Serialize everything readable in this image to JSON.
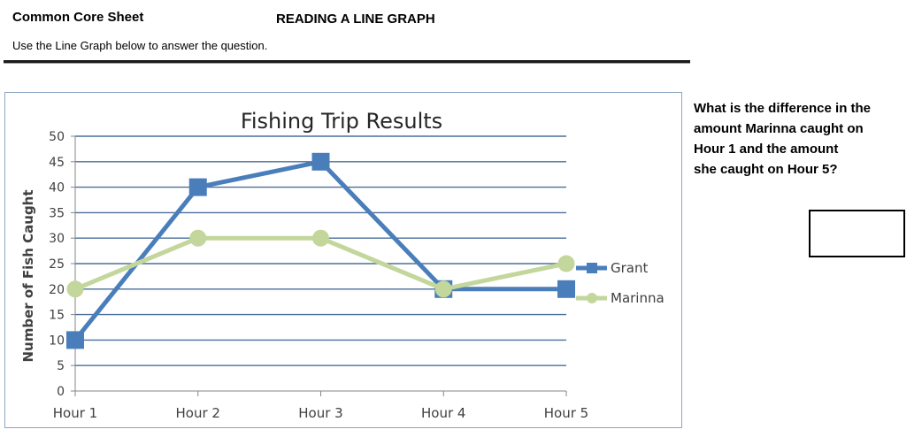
{
  "header": {
    "sheet_label": "Common Core Sheet",
    "worksheet_title": "READING A LINE GRAPH",
    "instructions": "Use the Line Graph below to answer the question."
  },
  "question": {
    "lines": [
      "What is the difference in the",
      "amount Marinna caught on",
      "Hour 1 and the amount",
      "she caught on Hour 5?"
    ]
  },
  "colors": {
    "grant": "#4a7ebb",
    "marinna": "#c3d69b",
    "gridline": "#4a6f9a",
    "axis": "#868686",
    "tick_text": "#404040",
    "title_text": "#262626"
  },
  "chart_data": {
    "type": "line",
    "title": "Fishing Trip Results",
    "xlabel": "",
    "ylabel": "Number of Fish Caught",
    "categories": [
      "Hour 1",
      "Hour 2",
      "Hour 3",
      "Hour 4",
      "Hour 5"
    ],
    "ylim": [
      0,
      50
    ],
    "yticks": [
      0,
      5,
      10,
      15,
      20,
      25,
      30,
      35,
      40,
      45,
      50
    ],
    "grid": true,
    "legend_position": "right",
    "series": [
      {
        "name": "Grant",
        "values": [
          10,
          40,
          45,
          20,
          20
        ],
        "marker": "square",
        "color": "#4a7ebb"
      },
      {
        "name": "Marinna",
        "values": [
          20,
          30,
          30,
          20,
          25
        ],
        "marker": "circle",
        "color": "#c3d69b"
      }
    ]
  }
}
